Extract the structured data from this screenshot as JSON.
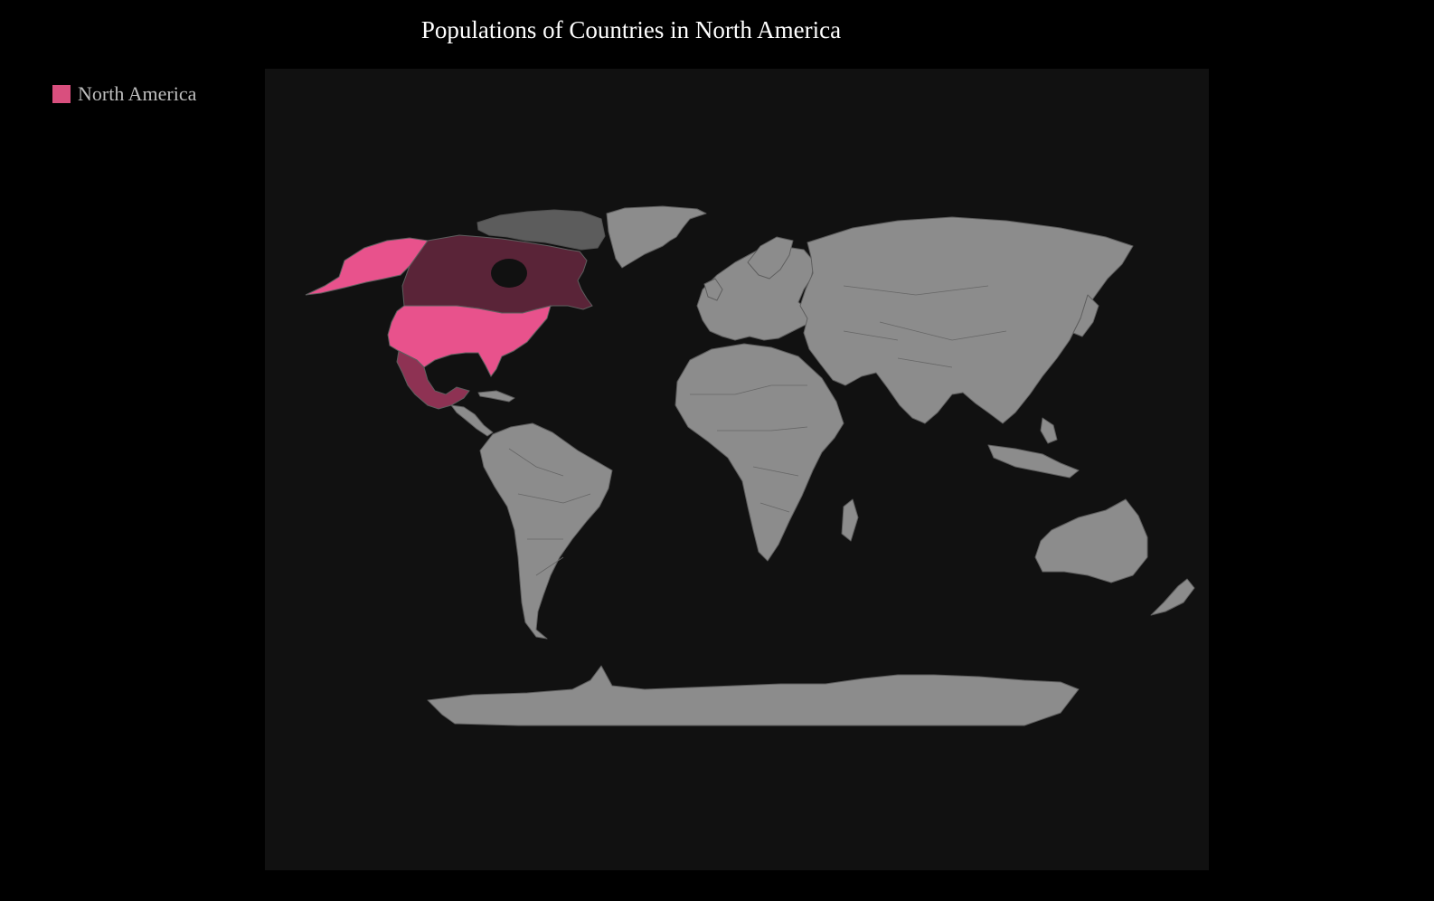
{
  "title": "Populations of Countries in North America",
  "legend": [
    {
      "label": "North America",
      "color": "#d94f7e"
    }
  ],
  "colors": {
    "background": "#000000",
    "map_background": "#111111",
    "land": "#8c8c8c",
    "country_border": "#5e5e5e"
  },
  "map": {
    "projection": "world",
    "highlighted_region": "North America",
    "highlighted_countries": [
      {
        "name": "United States",
        "color": "#e8528c",
        "shade": "highest"
      },
      {
        "name": "Mexico",
        "color": "#8e3253",
        "shade": "medium"
      },
      {
        "name": "Canada",
        "color": "#5a2438",
        "shade": "lowest"
      }
    ]
  }
}
